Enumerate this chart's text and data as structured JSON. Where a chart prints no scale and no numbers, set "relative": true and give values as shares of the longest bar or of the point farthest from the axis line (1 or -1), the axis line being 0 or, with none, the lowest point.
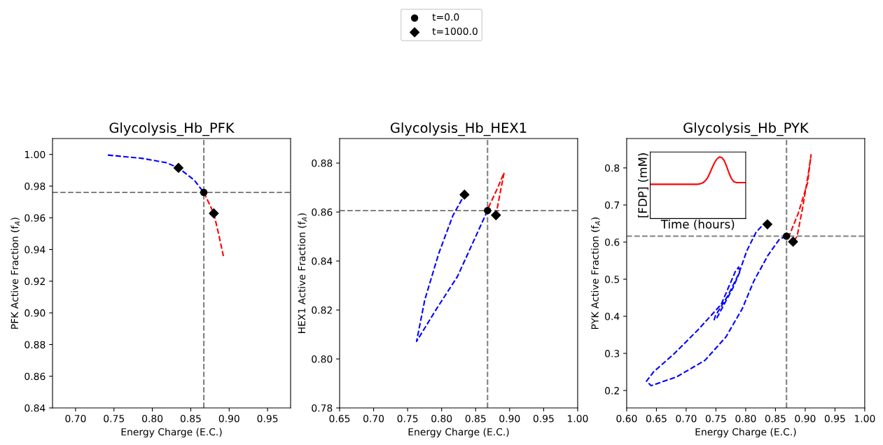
{
  "chart_data": [
    {
      "type": "line",
      "title": "Glycolysis_Hb_PFK",
      "xlabel": "Energy Charge (E.C.)",
      "ylabel": "PFK Active Fraction (f$_{A}$)",
      "xlim": [
        0.67,
        0.98
      ],
      "xticks": [
        {
          "value": 0.7,
          "label": "0.70"
        },
        0.75,
        {
          "value": 0.8,
          "label": "0.80"
        },
        0.85,
        {
          "value": 0.9,
          "label": "0.90"
        },
        0.95
      ],
      "ylim": [
        0.84,
        1.01
      ],
      "yticks": [
        0.84,
        0.86,
        0.88,
        {
          "value": 0.9,
          "label": "0.90"
        },
        0.92,
        0.94,
        0.96,
        0.98,
        {
          "value": 1.0,
          "label": "1.00"
        }
      ],
      "grid": false,
      "legend": "top",
      "ref_lines": [
        {
          "axis": "x",
          "value": 0.867,
          "color": "#808080",
          "line_style": "dashed"
        },
        {
          "axis": "y",
          "value": 0.976,
          "color": "#808080",
          "line_style": "dashed"
        }
      ],
      "series": [
        {
          "type": "line",
          "color": "#0000ff",
          "line_style": "dashed",
          "marker": "none",
          "x": [
            0.742,
            0.787,
            0.818,
            0.834,
            0.8545,
            0.867
          ],
          "values": [
            0.9996,
            0.9975,
            0.9948,
            0.9915,
            0.9838,
            0.976
          ]
        },
        {
          "type": "line",
          "color": "#ff0000",
          "line_style": "dashed",
          "marker": "none",
          "x": [
            0.867,
            0.88,
            0.8865,
            0.8925
          ],
          "values": [
            0.976,
            0.9628,
            0.9493,
            0.9358
          ]
        },
        {
          "type": "scatter",
          "name": "t=0.0",
          "color": "#000000",
          "marker": "circle",
          "x": [
            0.867
          ],
          "values": [
            0.976
          ]
        },
        {
          "type": "scatter",
          "name": "t=1000.0",
          "color": "#000000",
          "marker": "diamond",
          "x": [
            0.834,
            0.88
          ],
          "values": [
            0.9915,
            0.9628
          ]
        }
      ]
    },
    {
      "type": "line",
      "title": "Glycolysis_Hb_HEX1",
      "xlabel": "Energy Charge (E.C.)",
      "ylabel": "HEX1 Active Fraction (f$_{A}$)",
      "xlim": [
        0.65,
        1.0
      ],
      "xticks": [
        0.65,
        {
          "value": 0.7,
          "label": "0.70"
        },
        0.75,
        {
          "value": 0.8,
          "label": "0.80"
        },
        0.85,
        {
          "value": 0.9,
          "label": "0.90"
        },
        0.95,
        {
          "value": 1.0,
          "label": "1.00"
        }
      ],
      "ylim": [
        0.78,
        0.89
      ],
      "yticks": [
        0.78,
        {
          "value": 0.8,
          "label": "0.80"
        },
        0.82,
        0.84,
        0.86,
        0.88
      ],
      "grid": false,
      "ref_lines": [
        {
          "axis": "x",
          "value": 0.8675,
          "color": "#808080",
          "line_style": "dashed"
        },
        {
          "axis": "y",
          "value": 0.8606,
          "color": "#808080",
          "line_style": "dashed"
        }
      ],
      "series": [
        {
          "type": "line",
          "color": "#0000ff",
          "line_style": "dashed",
          "marker": "none",
          "x": [
            0.8675,
            0.8233,
            0.7924,
            0.7632,
            0.7753,
            0.7959,
            0.8165,
            0.8336
          ],
          "values": [
            0.8606,
            0.8337,
            0.8204,
            0.8072,
            0.8242,
            0.8432,
            0.8585,
            0.8671
          ]
        },
        {
          "type": "line",
          "color": "#ff0000",
          "line_style": "dashed",
          "marker": "none",
          "x": [
            0.8688,
            0.8816,
            0.8919,
            0.8868,
            0.8816,
            0.8799
          ],
          "values": [
            0.8618,
            0.8694,
            0.8761,
            0.8689,
            0.8613,
            0.8587
          ]
        },
        {
          "type": "scatter",
          "color": "#000000",
          "marker": "circle",
          "x": [
            0.8675
          ],
          "values": [
            0.8606
          ]
        },
        {
          "type": "scatter",
          "color": "#000000",
          "marker": "diamond",
          "x": [
            0.8336,
            0.8799
          ],
          "values": [
            0.8671,
            0.8587
          ]
        }
      ]
    },
    {
      "type": "line",
      "title": "Glycolysis_Hb_PYK",
      "xlabel": "Energy Charge (E.C.)",
      "ylabel": "PYK Active Fraction (f$_{A}$)",
      "xlim": [
        0.6,
        1.0
      ],
      "xticks": [
        {
          "value": 0.6,
          "label": "0.60"
        },
        0.65,
        {
          "value": 0.7,
          "label": "0.70"
        },
        0.75,
        {
          "value": 0.8,
          "label": "0.80"
        },
        0.85,
        {
          "value": 0.9,
          "label": "0.90"
        },
        0.95,
        {
          "value": 1.0,
          "label": "1.00"
        }
      ],
      "ylim": [
        0.153,
        0.879
      ],
      "yticks": [
        0.2,
        0.3,
        0.4,
        0.5,
        0.6,
        0.7,
        0.8
      ],
      "grid": false,
      "ref_lines": [
        {
          "axis": "x",
          "value": 0.8686,
          "color": "#808080",
          "line_style": "dashed"
        },
        {
          "axis": "y",
          "value": 0.616,
          "color": "#808080",
          "line_style": "dashed"
        }
      ],
      "series": [
        {
          "type": "line",
          "color": "#0000ff",
          "line_style": "dashed",
          "marker": "none",
          "x": [
            0.8686,
            0.8569,
            0.8373,
            0.8137,
            0.7941,
            0.7667,
            0.7314,
            0.6843,
            0.6412,
            0.6333,
            0.6451,
            0.6804,
            0.7196,
            0.7588,
            0.7824,
            0.7882,
            0.7902,
            0.7784,
            0.751,
            0.7471,
            0.749,
            0.7706,
            0.7882,
            0.802,
            0.8176,
            0.8294,
            0.8365
          ],
          "values": [
            0.616,
            0.608,
            0.564,
            0.495,
            0.42,
            0.344,
            0.281,
            0.237,
            0.213,
            0.225,
            0.25,
            0.3,
            0.363,
            0.432,
            0.52,
            0.533,
            0.52,
            0.476,
            0.394,
            0.391,
            0.401,
            0.457,
            0.514,
            0.577,
            0.627,
            0.647,
            0.648
          ]
        },
        {
          "type": "line",
          "color": "#ff0000",
          "line_style": "dashed",
          "marker": "none",
          "x": [
            0.8686,
            0.8733,
            0.8882,
            0.9039,
            0.9098,
            0.9059,
            0.8961,
            0.8863,
            0.8796
          ],
          "values": [
            0.616,
            0.618,
            0.677,
            0.759,
            0.835,
            0.791,
            0.696,
            0.615,
            0.601
          ]
        },
        {
          "type": "scatter",
          "color": "#000000",
          "marker": "circle",
          "x": [
            0.8686
          ],
          "values": [
            0.616
          ]
        },
        {
          "type": "scatter",
          "color": "#000000",
          "marker": "diamond",
          "x": [
            0.8365,
            0.8796
          ],
          "values": [
            0.648,
            0.601
          ]
        }
      ]
    },
    {
      "type": "line",
      "relative": true,
      "xlabel": "Time (hours)",
      "ylabel": "[FDP] (mM)",
      "grid": false,
      "categories": [
        null,
        null,
        null,
        null,
        null,
        null,
        null,
        null,
        null,
        null,
        null,
        null,
        null,
        null,
        null,
        null,
        null,
        null,
        null,
        null,
        null,
        null,
        null,
        null,
        null,
        null,
        null,
        null,
        null,
        null,
        null,
        null,
        null,
        null,
        null,
        null,
        null,
        null,
        null,
        null,
        null
      ],
      "series": [
        {
          "color": "#ff0000",
          "line_style": "solid",
          "marker": "none",
          "values": [
            0.557,
            0.557,
            0.557,
            0.557,
            0.557,
            0.557,
            0.557,
            0.557,
            0.557,
            0.557,
            0.557,
            0.557,
            0.557,
            0.557,
            0.557,
            0.557,
            0.557,
            0.557,
            0.557,
            0.557,
            0.557,
            0.565,
            0.58,
            0.61,
            0.66,
            0.74,
            0.83,
            0.91,
            0.97,
            1.0,
            0.99,
            0.94,
            0.85,
            0.74,
            0.65,
            0.6,
            0.585,
            0.583,
            0.583,
            0.583,
            0.583
          ]
        }
      ]
    }
  ]
}
